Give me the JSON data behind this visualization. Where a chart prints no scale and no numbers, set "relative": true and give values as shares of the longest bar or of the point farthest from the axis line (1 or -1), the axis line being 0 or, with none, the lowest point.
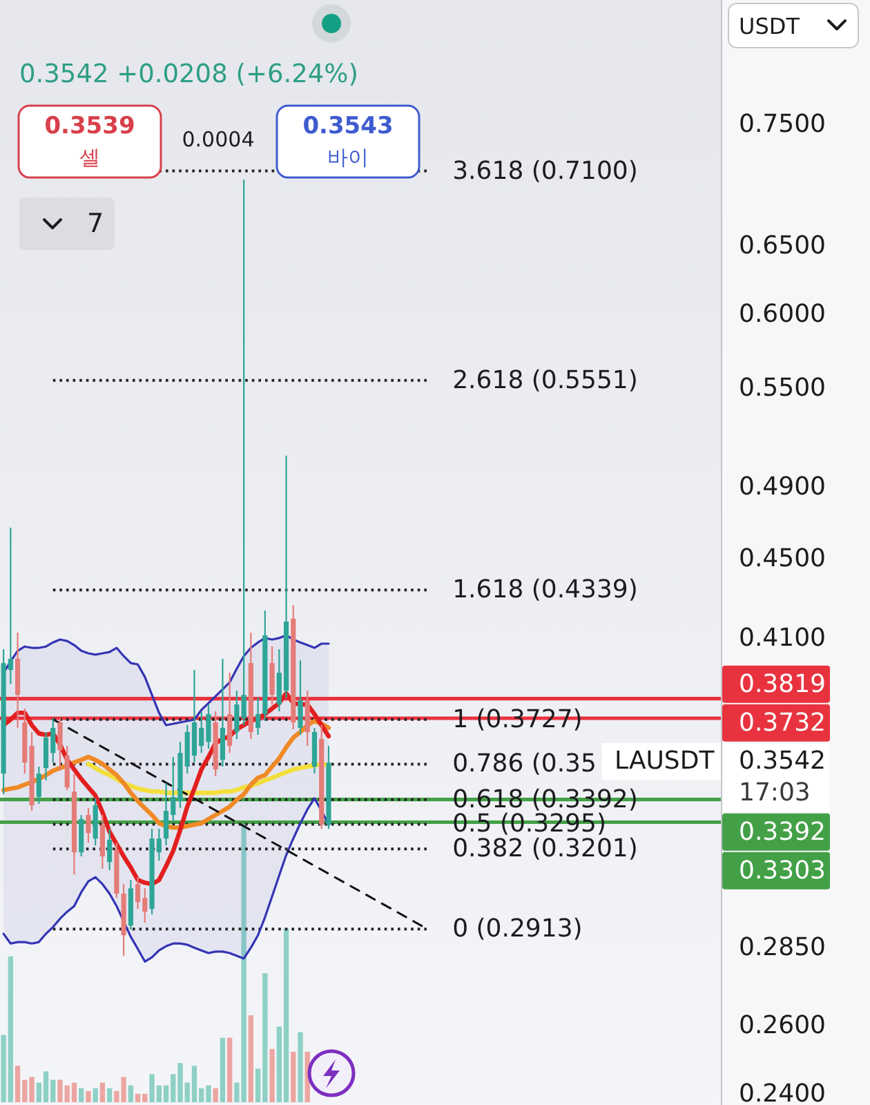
{
  "chart_data": [
    {
      "type": "candlestick",
      "subtitle": "0.3542 +0.0208 (+6.24%)",
      "ylabel": "USDT",
      "categories": [
        null,
        null,
        null,
        null,
        null,
        null,
        null,
        null,
        null,
        null,
        null,
        null,
        null,
        null,
        null,
        null,
        null,
        null,
        null,
        null,
        null,
        null,
        null,
        null,
        null,
        null,
        null,
        null,
        null,
        null,
        null,
        null,
        null,
        null,
        null,
        null,
        null,
        null,
        null,
        null,
        null,
        null,
        null,
        null,
        null,
        null,
        null,
        null,
        null,
        null,
        null,
        null,
        null,
        null,
        null,
        null,
        null,
        null,
        null,
        null,
        null,
        null,
        null,
        null,
        null,
        null,
        null,
        null,
        null,
        null,
        null,
        null,
        null,
        null,
        null,
        null,
        null,
        null,
        null,
        null,
        null,
        null,
        null,
        null,
        null,
        null,
        null,
        null,
        null,
        null,
        null,
        null,
        null,
        null,
        null,
        null,
        null,
        null,
        null,
        null,
        null,
        null
      ],
      "ohlc": [
        [
          0.3497,
          0.4047,
          0.3413,
          0.3982
        ],
        [
          0.395,
          0.4669,
          0.3886,
          0.4002
        ],
        [
          0.4002,
          0.4127,
          0.369,
          0.3836
        ],
        [
          0.3714,
          0.3775,
          0.3497,
          0.3543
        ],
        [
          0.3613,
          0.3672,
          0.3347,
          0.3369
        ],
        [
          0.3402,
          0.3526,
          0.3375,
          0.3497
        ],
        [
          0.352,
          0.3672,
          0.3469,
          0.3648
        ],
        [
          0.3583,
          0.3732,
          0.3543,
          0.369
        ],
        [
          0.3714,
          0.3732,
          0.3509,
          0.3595
        ],
        [
          0.3572,
          0.3613,
          0.343,
          0.3441
        ],
        [
          0.3424,
          0.3497,
          0.3106,
          0.3188
        ],
        [
          0.3188,
          0.3331,
          0.3173,
          0.3315
        ],
        [
          0.3331,
          0.3358,
          0.3224,
          0.3261
        ],
        [
          0.324,
          0.3397,
          0.3214,
          0.3369
        ],
        [
          0.3293,
          0.3331,
          0.3127,
          0.3173
        ],
        [
          0.3152,
          0.3277,
          0.3122,
          0.3235
        ],
        [
          0.3198,
          0.3224,
          0.3022,
          0.3037
        ],
        [
          0.3037,
          0.3071,
          0.2823,
          0.2892
        ],
        [
          0.2925,
          0.3086,
          0.2911,
          0.3056
        ],
        [
          0.3071,
          0.3096,
          0.2983,
          0.3007
        ],
        [
          0.3022,
          0.3056,
          0.2935,
          0.2973
        ],
        [
          0.2983,
          0.3277,
          0.2964,
          0.324
        ],
        [
          0.3188,
          0.3277,
          0.3157,
          0.324
        ],
        [
          0.324,
          0.3458,
          0.3214,
          0.3347
        ],
        [
          0.3331,
          0.3566,
          0.3304,
          0.3402
        ],
        [
          0.3386,
          0.363,
          0.3358,
          0.3583
        ],
        [
          0.3526,
          0.3702,
          0.3497,
          0.3672
        ],
        [
          0.3572,
          0.395,
          0.3543,
          0.3714
        ],
        [
          0.3613,
          0.3762,
          0.3583,
          0.369
        ],
        [
          0.363,
          0.3793,
          0.3601,
          0.375
        ],
        [
          0.3714,
          0.3762,
          0.3486,
          0.3514
        ],
        [
          0.3554,
          0.4002,
          0.3526,
          0.369
        ],
        [
          0.375,
          0.3937,
          0.3583,
          0.3613
        ],
        [
          0.3672,
          0.3855,
          0.3642,
          0.3793
        ],
        [
          0.3732,
          0.7028,
          0.3702,
          0.3836
        ],
        [
          0.3982,
          0.4127,
          0.3642,
          0.3672
        ],
        [
          0.369,
          0.3824,
          0.366,
          0.375
        ],
        [
          0.375,
          0.4236,
          0.372,
          0.4114
        ],
        [
          0.3982,
          0.4061,
          0.3793,
          0.3836
        ],
        [
          0.3793,
          0.4047,
          0.3762,
          0.3937
        ],
        [
          0.3855,
          0.5081,
          0.3824,
          0.4181
        ],
        [
          0.4195,
          0.4263,
          0.3684,
          0.3714
        ],
        [
          0.369,
          0.3995,
          0.366,
          0.3811
        ],
        [
          0.3811,
          0.3855,
          0.3613,
          0.3672
        ],
        [
          0.3526,
          0.369,
          0.3497,
          0.3672
        ],
        [
          0.3642,
          0.3702,
          0.3277,
          0.3293
        ],
        [
          0.3293,
          0.3613,
          0.3277,
          0.3542
        ],
        null,
        null,
        null,
        null,
        null,
        null,
        null,
        null,
        null,
        null,
        null,
        null,
        null,
        null,
        null,
        null,
        null,
        null,
        null,
        null,
        null,
        null,
        null,
        null,
        null,
        null,
        null,
        null,
        null,
        null,
        null,
        null,
        null,
        null,
        null,
        null,
        null,
        null,
        null,
        null,
        null,
        null,
        null,
        null,
        null,
        null,
        null,
        null,
        null,
        null,
        null,
        null,
        null,
        null,
        null
      ],
      "colors": [
        "#2ea596",
        "#2ea596",
        "#e47c78",
        "#e47c78",
        "#e47c78",
        "#2ea596",
        "#2ea596",
        "#2ea596",
        "#e47c78",
        "#e47c78",
        "#e47c78",
        "#2ea596",
        "#e47c78",
        "#2ea596",
        "#e47c78",
        "#2ea596",
        "#e47c78",
        "#e47c78",
        "#2ea596",
        "#e47c78",
        "#e47c78",
        "#2ea596",
        "#2ea596",
        "#2ea596",
        "#2ea596",
        "#2ea596",
        "#2ea596",
        "#2ea596",
        "#2ea596",
        "#2ea596",
        "#e47c78",
        "#2ea596",
        "#e47c78",
        "#2ea596",
        "#2ea596",
        "#e47c78",
        "#2ea596",
        "#2ea596",
        "#e47c78",
        "#2ea596",
        "#2ea596",
        "#e47c78",
        "#2ea596",
        "#e47c78",
        "#2ea596",
        "#e47c78",
        "#2ea596",
        null,
        null,
        null,
        null,
        null,
        null,
        null,
        null,
        null,
        null,
        null,
        null,
        null,
        null,
        null,
        null,
        null,
        null,
        null,
        null,
        null,
        null,
        null,
        null,
        null,
        null,
        null,
        null,
        null,
        null,
        null,
        null,
        null,
        null,
        null,
        null,
        null,
        null,
        null,
        null,
        null,
        null,
        null,
        null,
        null,
        null,
        null,
        null,
        null,
        null,
        null,
        null,
        null,
        null,
        null
      ],
      "series": [
        {
          "type": "line",
          "color": "#3434b4",
          "values": [
            0.3937,
            0.3989,
            0.404,
            0.406,
            0.4054,
            0.4054,
            0.406,
            0.408,
            0.4094,
            0.4087,
            0.4067,
            0.404,
            0.4028,
            0.4022,
            0.4028,
            0.4034,
            0.4054,
            0.4015,
            0.3982,
            0.3976,
            0.3918,
            0.3836,
            0.3756,
            0.3702,
            0.3708,
            0.3714,
            0.372,
            0.3726,
            0.3769,
            0.3799,
            0.383,
            0.3861,
            0.3893,
            0.3956,
            0.4015,
            0.4054,
            0.408,
            0.4101,
            0.4094,
            0.4101,
            0.4114,
            0.4094,
            0.408,
            0.4067,
            0.4054,
            0.4074,
            0.4074,
            null,
            null,
            null,
            null,
            null,
            null,
            null,
            null,
            null,
            null,
            null,
            null,
            null,
            null,
            null,
            null,
            null,
            null,
            null,
            null,
            null,
            null,
            null,
            null,
            null,
            null,
            null,
            null,
            null,
            null,
            null,
            null,
            null,
            null,
            null,
            null,
            null,
            null,
            null,
            null,
            null,
            null,
            null,
            null,
            null,
            null,
            null,
            null,
            null,
            null,
            null,
            null,
            null,
            null,
            null
          ],
          "upper": [
            0.3937,
            0.3989,
            0.404,
            0.406,
            0.4054,
            0.4054,
            0.406,
            0.408,
            0.4094,
            0.4087,
            0.4067,
            0.404,
            0.4028,
            0.4022,
            0.4028,
            0.4034,
            0.4054,
            0.4015,
            0.3982,
            0.3976,
            0.3918,
            0.3836,
            0.3756,
            0.3702,
            0.3708,
            0.3714,
            0.372,
            0.3726,
            0.3769,
            0.3799,
            0.383,
            0.3861,
            0.3893,
            0.3956,
            0.4015,
            0.4054,
            0.408,
            0.4101,
            0.4094,
            0.4101,
            0.4114,
            0.4094,
            0.408,
            0.4067,
            0.4054,
            0.4074,
            0.4074,
            null,
            null,
            null,
            null,
            null,
            null,
            null,
            null,
            null,
            null,
            null,
            null,
            null,
            null,
            null,
            null,
            null,
            null,
            null,
            null,
            null,
            null,
            null,
            null,
            null,
            null,
            null,
            null,
            null,
            null,
            null,
            null,
            null,
            null,
            null,
            null,
            null,
            null,
            null,
            null,
            null,
            null,
            null,
            null,
            null,
            null,
            null,
            null,
            null,
            null,
            null,
            null,
            null,
            null,
            null
          ],
          "lower": [
            0.2897,
            0.2864,
            0.2869,
            0.2869,
            0.2864,
            0.2869,
            0.2897,
            0.292,
            0.2949,
            0.2973,
            0.2993,
            0.3042,
            0.3081,
            0.3096,
            0.3071,
            0.3037,
            0.2993,
            0.2939,
            0.2887,
            0.2846,
            0.2804,
            0.2818,
            0.2841,
            0.2855,
            0.2864,
            0.2864,
            0.286,
            0.285,
            0.2841,
            0.2832,
            0.2837,
            0.2837,
            0.2832,
            0.2823,
            0.2814,
            0.285,
            0.2892,
            0.2954,
            0.3027,
            0.3102,
            0.3178,
            0.324,
            0.3299,
            0.3353,
            0.3397,
            0.3347,
            0.3293,
            null,
            null,
            null,
            null,
            null,
            null,
            null,
            null,
            null,
            null,
            null,
            null,
            null,
            null,
            null,
            null,
            null,
            null,
            null,
            null,
            null,
            null,
            null,
            null,
            null,
            null,
            null,
            null,
            null,
            null,
            null,
            null,
            null,
            null,
            null,
            null,
            null,
            null,
            null,
            null,
            null,
            null,
            null,
            null,
            null,
            null,
            null,
            null,
            null,
            null,
            null,
            null,
            null,
            null,
            null
          ]
        },
        {
          "type": "line",
          "color": "#3434b4",
          "values": [
            0.2897,
            0.2864,
            0.2869,
            0.2869,
            0.2864,
            0.2869,
            0.2897,
            0.292,
            0.2949,
            0.2973,
            0.2993,
            0.3042,
            0.3081,
            0.3096,
            0.3071,
            0.3037,
            0.2993,
            0.2939,
            0.2887,
            0.2846,
            0.2804,
            0.2818,
            0.2841,
            0.2855,
            0.2864,
            0.2864,
            0.286,
            0.285,
            0.2841,
            0.2832,
            0.2837,
            0.2837,
            0.2832,
            0.2823,
            0.2814,
            0.285,
            0.2892,
            0.2954,
            0.3027,
            0.3102,
            0.3178,
            0.324,
            0.3299,
            0.3353,
            0.3397,
            0.3347,
            0.3293,
            null,
            null,
            null,
            null,
            null,
            null,
            null,
            null,
            null,
            null,
            null,
            null,
            null,
            null,
            null,
            null,
            null,
            null,
            null,
            null,
            null,
            null,
            null,
            null,
            null,
            null,
            null,
            null,
            null,
            null,
            null,
            null,
            null,
            null,
            null,
            null,
            null,
            null,
            null,
            null,
            null,
            null,
            null,
            null,
            null,
            null,
            null,
            null,
            null,
            null,
            null,
            null,
            null,
            null,
            null
          ]
        },
        {
          "type": "line",
          "color": "#f3df3c",
          "values": [
            null,
            null,
            null,
            null,
            null,
            null,
            null,
            null,
            null,
            null,
            null,
            null,
            0.3537,
            0.352,
            0.3503,
            0.3491,
            0.3475,
            0.3458,
            0.3447,
            0.3436,
            0.343,
            0.3424,
            0.3424,
            0.3419,
            0.3419,
            0.3419,
            0.3419,
            0.3419,
            0.3419,
            0.3419,
            0.3419,
            0.3424,
            0.3424,
            0.343,
            0.3441,
            0.3447,
            0.3458,
            0.3469,
            0.348,
            0.3491,
            0.3503,
            0.3514,
            0.352,
            0.3526,
            0.3531,
            0.3537,
            0.3531,
            null,
            null,
            null,
            null,
            null,
            null,
            null,
            null,
            null,
            null,
            null,
            null,
            null,
            null,
            null,
            null,
            null,
            null,
            null,
            null,
            null,
            null,
            null,
            null,
            null,
            null,
            null,
            null,
            null,
            null,
            null,
            null,
            null,
            null,
            null,
            null,
            null,
            null,
            null,
            null,
            null,
            null,
            null,
            null,
            null,
            null,
            null,
            null,
            null,
            null,
            null,
            null,
            null,
            null,
            null
          ]
        },
        {
          "type": "line",
          "color": "#ef8a26",
          "values": [
            0.343,
            0.3436,
            0.3441,
            0.3452,
            0.3463,
            0.3475,
            0.3491,
            0.3509,
            0.352,
            0.3531,
            0.3543,
            0.3554,
            0.3566,
            0.3554,
            0.3537,
            0.3514,
            0.3491,
            0.3458,
            0.3419,
            0.3386,
            0.3358,
            0.3331,
            0.3299,
            0.3288,
            0.3282,
            0.3282,
            0.3288,
            0.3293,
            0.3299,
            0.3315,
            0.3331,
            0.3347,
            0.3364,
            0.3391,
            0.3413,
            0.3452,
            0.348,
            0.3491,
            0.3526,
            0.356,
            0.3607,
            0.3648,
            0.3672,
            0.3702,
            0.372,
            0.3708,
            0.369,
            null,
            null,
            null,
            null,
            null,
            null,
            null,
            null,
            null,
            null,
            null,
            null,
            null,
            null,
            null,
            null,
            null,
            null,
            null,
            null,
            null,
            null,
            null,
            null,
            null,
            null,
            null,
            null,
            null,
            null,
            null,
            null,
            null,
            null,
            null,
            null,
            null,
            null,
            null,
            null,
            null,
            null,
            null,
            null,
            null,
            null,
            null,
            null,
            null,
            null,
            null,
            null,
            null,
            null,
            null
          ]
        },
        {
          "type": "line",
          "color": "#e21f1f",
          "values": [
            0.3702,
            0.3726,
            0.3756,
            0.3756,
            0.3702,
            0.3666,
            0.366,
            0.3666,
            0.3619,
            0.3554,
            0.3514,
            0.3475,
            0.3441,
            0.3408,
            0.3342,
            0.3266,
            0.3219,
            0.3173,
            0.3132,
            0.3086,
            0.3076,
            0.3071,
            0.3086,
            0.3137,
            0.3193,
            0.3272,
            0.3364,
            0.3436,
            0.3514,
            0.3566,
            0.3625,
            0.3642,
            0.3654,
            0.3684,
            0.3702,
            0.372,
            0.3732,
            0.375,
            0.3775,
            0.3799,
            0.3843,
            0.3799,
            0.3793,
            0.3793,
            0.375,
            0.3702,
            0.3654,
            null,
            null,
            null,
            null,
            null,
            null,
            null,
            null,
            null,
            null,
            null,
            null,
            null,
            null,
            null,
            null,
            null,
            null,
            null,
            null,
            null,
            null,
            null,
            null,
            null,
            null,
            null,
            null,
            null,
            null,
            null,
            null,
            null,
            null,
            null,
            null,
            null,
            null,
            null,
            null,
            null,
            null,
            null,
            null,
            null,
            null,
            null,
            null,
            null,
            null,
            null,
            null,
            null,
            null,
            null
          ]
        },
        {
          "type": "line",
          "color": "#111111",
          "line_style": "dashed",
          "values": [
            null,
            null,
            null,
            null,
            null,
            null,
            null,
            0.3727,
            null,
            null,
            null,
            null,
            null,
            null,
            null,
            null,
            null,
            null,
            null,
            null,
            null,
            null,
            null,
            null,
            null,
            null,
            null,
            null,
            null,
            null,
            null,
            null,
            null,
            null,
            null,
            null,
            null,
            null,
            null,
            null,
            null,
            null,
            null,
            null,
            null,
            null,
            null,
            null,
            null,
            null,
            null,
            null,
            null,
            null,
            null,
            null,
            null,
            null,
            null,
            null,
            0.2913,
            null,
            null,
            null,
            null,
            null,
            null,
            null,
            null,
            null,
            null,
            null,
            null,
            null,
            null,
            null,
            null,
            null,
            null,
            null,
            null,
            null,
            null,
            null,
            null,
            null,
            null,
            null,
            null,
            null,
            null,
            null,
            null,
            null,
            null,
            null,
            null,
            null,
            null,
            null,
            null,
            null
          ]
        }
      ],
      "ylim": [
        0.2369,
        0.868
      ],
      "log": true,
      "yticks": [
        {
          "value": 0.75,
          "label": "0.7500"
        },
        {
          "value": 0.65,
          "label": "0.6500"
        },
        {
          "value": 0.6,
          "label": "0.6000"
        },
        {
          "value": 0.55,
          "label": "0.5500"
        },
        {
          "value": 0.49,
          "label": "0.4900"
        },
        {
          "value": 0.45,
          "label": "0.4500"
        },
        {
          "value": 0.41,
          "label": "0.4100"
        },
        {
          "value": 0.285,
          "label": "0.2850"
        },
        {
          "value": 0.26,
          "label": "0.2600"
        },
        {
          "value": 0.24,
          "label": "0.2400"
        }
      ],
      "tick_labels": "y",
      "ref_lines": [
        {
          "axis": "y",
          "value": 0.71,
          "label": "3.618 (0.7100)",
          "color": "#222222",
          "line_style": "dotted"
        },
        {
          "axis": "y",
          "value": 0.5551,
          "label": "2.618 (0.5551)",
          "color": "#222222",
          "line_style": "dotted"
        },
        {
          "axis": "y",
          "value": 0.4339,
          "label": "1.618 (0.4339)",
          "color": "#222222",
          "line_style": "dotted"
        },
        {
          "axis": "y",
          "value": 0.3727,
          "label": "1 (0.3727)",
          "color": "#222222",
          "line_style": "dotted"
        },
        {
          "axis": "y",
          "value": 0.3536,
          "label": "0.786 (0.35",
          "color": "#222222",
          "line_style": "dotted"
        },
        {
          "axis": "y",
          "value": 0.3392,
          "label": "0.618 (0.3392)",
          "color": "#222222",
          "line_style": "dotted"
        },
        {
          "axis": "y",
          "value": 0.3295,
          "label": "0.5 (0.3295)",
          "color": "#222222",
          "line_style": "dotted"
        },
        {
          "axis": "y",
          "value": 0.3201,
          "label": "0.382 (0.3201)",
          "color": "#222222",
          "line_style": "dotted"
        },
        {
          "axis": "y",
          "value": 0.2913,
          "label": "0 (0.2913)",
          "color": "#222222",
          "line_style": "dotted"
        },
        {
          "axis": "y",
          "value": 0.3819,
          "label": "0.3819",
          "color": "#e8333f",
          "line_style": "solid"
        },
        {
          "axis": "y",
          "value": 0.3732,
          "label": "0.3732",
          "color": "#e8333f",
          "line_style": "solid"
        },
        {
          "axis": "y",
          "value": 0.3392,
          "label": "0.3392",
          "color": "#43a047",
          "line_style": "solid"
        },
        {
          "axis": "y",
          "value": 0.3303,
          "label": "0.3303",
          "color": "#43a047",
          "line_style": "solid"
        }
      ],
      "annotations": [
        "0.3539",
        "셀",
        "0.0004",
        "0.3543",
        "바이",
        "7",
        "LAUSDT",
        "0.3542",
        "17:03"
      ]
    },
    {
      "type": "bar",
      "relative": true,
      "tick_labels": false,
      "categories": [
        null,
        null,
        null,
        null,
        null,
        null,
        null,
        null,
        null,
        null,
        null,
        null,
        null,
        null,
        null,
        null,
        null,
        null,
        null,
        null,
        null,
        null,
        null,
        null,
        null,
        null,
        null,
        null,
        null,
        null,
        null,
        null,
        null,
        null,
        null,
        null,
        null,
        null,
        null,
        null,
        null,
        null,
        null,
        null,
        null,
        null,
        null,
        null,
        null,
        null,
        null,
        null,
        null,
        null,
        null,
        null,
        null,
        null,
        null,
        null,
        null,
        null,
        null,
        null,
        null,
        null,
        null,
        null,
        null,
        null,
        null,
        null,
        null,
        null,
        null,
        null,
        null,
        null,
        null,
        null,
        null,
        null,
        null,
        null,
        null,
        null,
        null,
        null,
        null,
        null,
        null,
        null,
        null,
        null,
        null,
        null,
        null,
        null,
        null,
        null,
        null,
        null
      ],
      "values": [
        0.24,
        0.52,
        0.13,
        0.08,
        0.09,
        0.07,
        0.11,
        0.08,
        0.08,
        0.06,
        0.07,
        0.05,
        0.04,
        0.05,
        0.07,
        0.05,
        0.04,
        0.09,
        0.06,
        0.03,
        0.03,
        0.1,
        0.06,
        0.06,
        0.1,
        0.14,
        0.07,
        0.13,
        0.05,
        0.06,
        0.05,
        0.23,
        0.23,
        0.07,
        1,
        0.31,
        0.12,
        0.46,
        0.19,
        0.27,
        0.62,
        0.18,
        0.25,
        0.18,
        null,
        null,
        null,
        null,
        null,
        null,
        null,
        null,
        null,
        null,
        null,
        null,
        null,
        null,
        null,
        null,
        null,
        null,
        null,
        null,
        null,
        null,
        null,
        null,
        null,
        null,
        null,
        null,
        null,
        null,
        null,
        null,
        null,
        null,
        null,
        null,
        null,
        null,
        null,
        null,
        null,
        null,
        null,
        null,
        null,
        null,
        null,
        null,
        null,
        null,
        null,
        null,
        null,
        null,
        null,
        null,
        null,
        null
      ],
      "colors": [
        "#8ed0c6",
        "#8ed0c6",
        "#eca6a2",
        "#eca6a2",
        "#eca6a2",
        "#8ed0c6",
        "#8ed0c6",
        "#8ed0c6",
        "#eca6a2",
        "#eca6a2",
        "#eca6a2",
        "#8ed0c6",
        "#eca6a2",
        "#8ed0c6",
        "#eca6a2",
        "#8ed0c6",
        "#eca6a2",
        "#eca6a2",
        "#8ed0c6",
        "#eca6a2",
        "#eca6a2",
        "#8ed0c6",
        "#8ed0c6",
        "#8ed0c6",
        "#8ed0c6",
        "#8ed0c6",
        "#8ed0c6",
        "#8ed0c6",
        "#8ed0c6",
        "#8ed0c6",
        "#eca6a2",
        "#8ed0c6",
        "#eca6a2",
        "#8ed0c6",
        "#8ed0c6",
        "#eca6a2",
        "#8ed0c6",
        "#8ed0c6",
        "#eca6a2",
        "#8ed0c6",
        "#8ed0c6",
        "#eca6a2",
        "#8ed0c6",
        "#eca6a2",
        null,
        null,
        null,
        null,
        null,
        null,
        null,
        null,
        null,
        null,
        null,
        null,
        null,
        null,
        null,
        null,
        null,
        null,
        null,
        null,
        null,
        null,
        null,
        null,
        null,
        null,
        null,
        null,
        null,
        null,
        null,
        null,
        null,
        null,
        null,
        null,
        null,
        null,
        null,
        null,
        null,
        null,
        null,
        null,
        null,
        null,
        null,
        null,
        null,
        null,
        null,
        null,
        null,
        null,
        null,
        null,
        null,
        null
      ]
    }
  ]
}
